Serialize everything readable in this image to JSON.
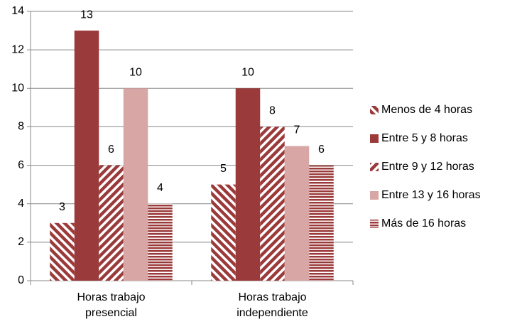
{
  "chart_data": {
    "type": "bar",
    "categories": [
      "Horas trabajo presencial",
      "Horas trabajo independiente"
    ],
    "series": [
      {
        "name": "Menos de 4 horas",
        "color": "#9b3a3a",
        "pattern": "diagonal-down",
        "values": [
          3,
          5
        ]
      },
      {
        "name": "Entre 5 y 8 horas",
        "color": "#9b3a3a",
        "pattern": "solid",
        "values": [
          13,
          10
        ]
      },
      {
        "name": "Entre 9 y 12 horas",
        "color": "#9b3a3a",
        "pattern": "diagonal-up",
        "values": [
          6,
          8
        ]
      },
      {
        "name": "Entre 13 y 16 horas",
        "color": "#d9a6a6",
        "pattern": "solid",
        "values": [
          10,
          7
        ]
      },
      {
        "name": "Más de 16 horas",
        "color": "#9b3a3a",
        "pattern": "horizontal",
        "values": [
          4,
          6
        ]
      }
    ],
    "ylim": [
      0,
      14
    ],
    "yticks": [
      0,
      2,
      4,
      6,
      8,
      10,
      12,
      14
    ],
    "grid": true,
    "legend": "right"
  }
}
